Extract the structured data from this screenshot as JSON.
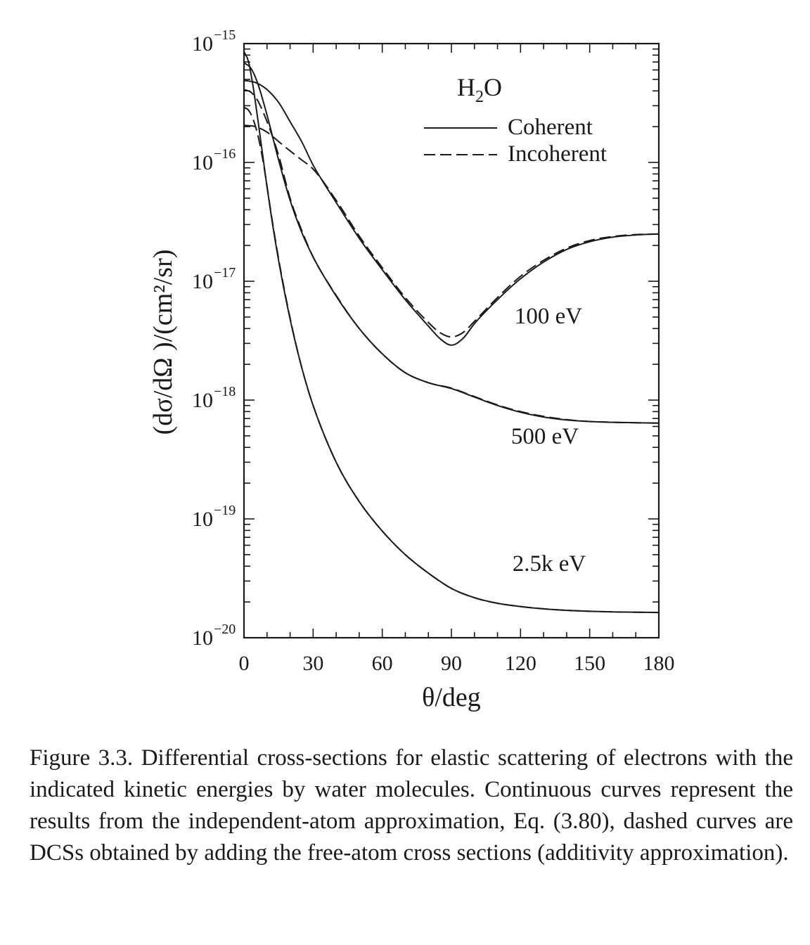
{
  "chart_data": {
    "type": "line",
    "ylabel": "(dσ/dΩ )/(cm²/sr)",
    "xlabel": "θ/deg",
    "x_ticks": [
      "0",
      "30",
      "60",
      "90",
      "120",
      "150",
      "180"
    ],
    "xlim": [
      0,
      180
    ],
    "y_scale": "log",
    "ylim": [
      1e-20,
      1e-15
    ],
    "y_tick_labels": [
      {
        "value": 1e-15,
        "base": "10",
        "exp": "−15"
      },
      {
        "value": 1e-16,
        "base": "10",
        "exp": "−16"
      },
      {
        "value": 1e-17,
        "base": "10",
        "exp": "−17"
      },
      {
        "value": 1e-18,
        "base": "10",
        "exp": "−18"
      },
      {
        "value": 1e-19,
        "base": "10",
        "exp": "−19"
      },
      {
        "value": 1e-20,
        "base": "10",
        "exp": "−20"
      }
    ],
    "grid": false,
    "legend": {
      "title_main": "H",
      "title_sub": "2",
      "title_end": "O",
      "entries": [
        {
          "label": "Coherent",
          "style": "solid"
        },
        {
          "label": "Incoherent",
          "style": "dashed"
        }
      ],
      "placement": "top-right"
    },
    "annotations": [
      "100 eV",
      "500 eV",
      "2.5k eV"
    ],
    "series": [
      {
        "energy": "100 eV",
        "style": "solid",
        "x": [
          0,
          5,
          10,
          15,
          20,
          25,
          30,
          40,
          50,
          60,
          70,
          80,
          85,
          90,
          95,
          100,
          110,
          120,
          130,
          140,
          150,
          160,
          170,
          180
        ],
        "y": [
          4.9e-16,
          4.7e-16,
          4.1e-16,
          3.2e-16,
          2.2e-16,
          1.5e-16,
          9.5e-17,
          4.6e-17,
          2.3e-17,
          1.25e-17,
          7e-18,
          4.2e-18,
          3.3e-18,
          2.9e-18,
          3.3e-18,
          4.4e-18,
          7e-18,
          1.05e-17,
          1.45e-17,
          1.85e-17,
          2.15e-17,
          2.35e-17,
          2.45e-17,
          2.5e-17
        ]
      },
      {
        "energy": "100 eV",
        "style": "dashed",
        "x": [
          0,
          5,
          10,
          15,
          20,
          25,
          30,
          40,
          50,
          60,
          70,
          80,
          85,
          90,
          95,
          100,
          110,
          120,
          130,
          140,
          150,
          160,
          170,
          180
        ],
        "y": [
          2.05e-16,
          2e-16,
          1.8e-16,
          1.5e-16,
          1.25e-16,
          1.05e-16,
          8.8e-17,
          4.8e-17,
          2.4e-17,
          1.3e-17,
          7.3e-18,
          4.5e-18,
          3.7e-18,
          3.4e-18,
          3.7e-18,
          4.6e-18,
          7.3e-18,
          1.1e-17,
          1.5e-17,
          1.9e-17,
          2.2e-17,
          2.38e-17,
          2.47e-17,
          2.5e-17
        ]
      },
      {
        "energy": "500 eV",
        "style": "solid",
        "x": [
          0,
          3,
          6,
          10,
          15,
          20,
          25,
          30,
          40,
          50,
          60,
          70,
          80,
          90,
          100,
          110,
          120,
          130,
          140,
          150,
          160,
          170,
          180
        ],
        "y": [
          6.9e-16,
          6.2e-16,
          4.6e-16,
          2.5e-16,
          1.05e-16,
          4.8e-17,
          2.6e-17,
          1.6e-17,
          7.5e-18,
          4e-18,
          2.45e-18,
          1.7e-18,
          1.4e-18,
          1.25e-18,
          1.06e-18,
          9e-19,
          7.9e-19,
          7.2e-19,
          6.8e-19,
          6.6e-19,
          6.5e-19,
          6.45e-19,
          6.4e-19
        ]
      },
      {
        "energy": "500 eV",
        "style": "dashed",
        "x": [
          0,
          3,
          6,
          10,
          15,
          20,
          25,
          30,
          40,
          50,
          60,
          70,
          80,
          90,
          100,
          110,
          120,
          130,
          140,
          150,
          160,
          170,
          180
        ],
        "y": [
          4.1e-16,
          3.9e-16,
          3.3e-16,
          2.2e-16,
          1.15e-16,
          5e-17,
          2.7e-17,
          1.6e-17,
          7.6e-18,
          4e-18,
          2.45e-18,
          1.7e-18,
          1.4e-18,
          1.26e-18,
          1.07e-18,
          9.1e-19,
          8e-19,
          7.3e-19,
          6.85e-19,
          6.6e-19,
          6.5e-19,
          6.45e-19,
          6.4e-19
        ]
      },
      {
        "energy": "2.5k eV",
        "style": "solid",
        "x": [
          0,
          2,
          4,
          6,
          8,
          10,
          12,
          15,
          20,
          25,
          30,
          40,
          50,
          60,
          70,
          80,
          90,
          100,
          110,
          120,
          130,
          140,
          150,
          160,
          170,
          180
        ],
        "y": [
          8.6e-16,
          7e-16,
          4.3e-16,
          2.3e-16,
          1.2e-16,
          6.2e-17,
          3.4e-17,
          1.5e-17,
          4.8e-18,
          1.9e-18,
          9e-19,
          3e-19,
          1.4e-19,
          7.9e-20,
          5e-20,
          3.5e-20,
          2.6e-20,
          2.17e-20,
          1.95e-20,
          1.83e-20,
          1.75e-20,
          1.7e-20,
          1.67e-20,
          1.65e-20,
          1.64e-20,
          1.63e-20
        ]
      },
      {
        "energy": "2.5k eV",
        "style": "dashed",
        "x": [
          0,
          2,
          4,
          6,
          8,
          10,
          12,
          15,
          20,
          25,
          30,
          40,
          50,
          60,
          70,
          80,
          90,
          100,
          110,
          120,
          130,
          140,
          150,
          160,
          170,
          180
        ],
        "y": [
          2.9e-16,
          2.75e-16,
          2.3e-16,
          1.7e-16,
          1.1e-16,
          6.3e-17,
          3.5e-17,
          1.55e-17,
          4.9e-18,
          1.9e-18,
          9e-19,
          3e-19,
          1.4e-19,
          7.9e-20,
          5e-20,
          3.5e-20,
          2.6e-20,
          2.17e-20,
          1.95e-20,
          1.83e-20,
          1.75e-20,
          1.7e-20,
          1.67e-20,
          1.65e-20,
          1.64e-20,
          1.63e-20
        ]
      }
    ]
  },
  "caption": "Figure 3.3. Differential cross-sections for elastic scattering of electrons with the indicated kinetic energies by water molecules. Continuous curves represent the results from the independent-atom approximation, Eq. (3.80), dashed curves are DCSs obtained by adding the free-atom cross sections (additivity approximation)."
}
